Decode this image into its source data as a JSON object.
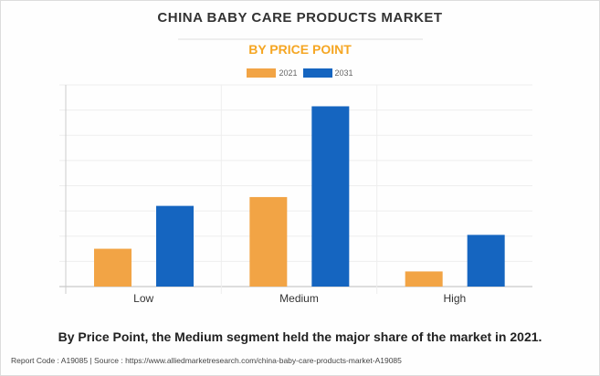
{
  "chart_data": {
    "type": "bar",
    "title": "CHINA BABY CARE PRODUCTS MARKET",
    "subtitle": "BY PRICE POINT",
    "categories": [
      "Low",
      "Medium",
      "High"
    ],
    "series": [
      {
        "name": "2021",
        "color": "#f2a445",
        "values": [
          1.5,
          3.55,
          0.6
        ]
      },
      {
        "name": "2031",
        "color": "#1565c0",
        "values": [
          3.2,
          7.15,
          2.05
        ]
      }
    ],
    "ylim": [
      0,
      8
    ],
    "grid": true,
    "legend": "top-center",
    "xlabel": "",
    "ylabel": ""
  },
  "caption": "By Price Point, the Medium segment held the major share of the market in 2021.",
  "footer": "Report Code : A19085  |  Source : https://www.alliedmarketresearch.com/china-baby-care-products-market-A19085"
}
